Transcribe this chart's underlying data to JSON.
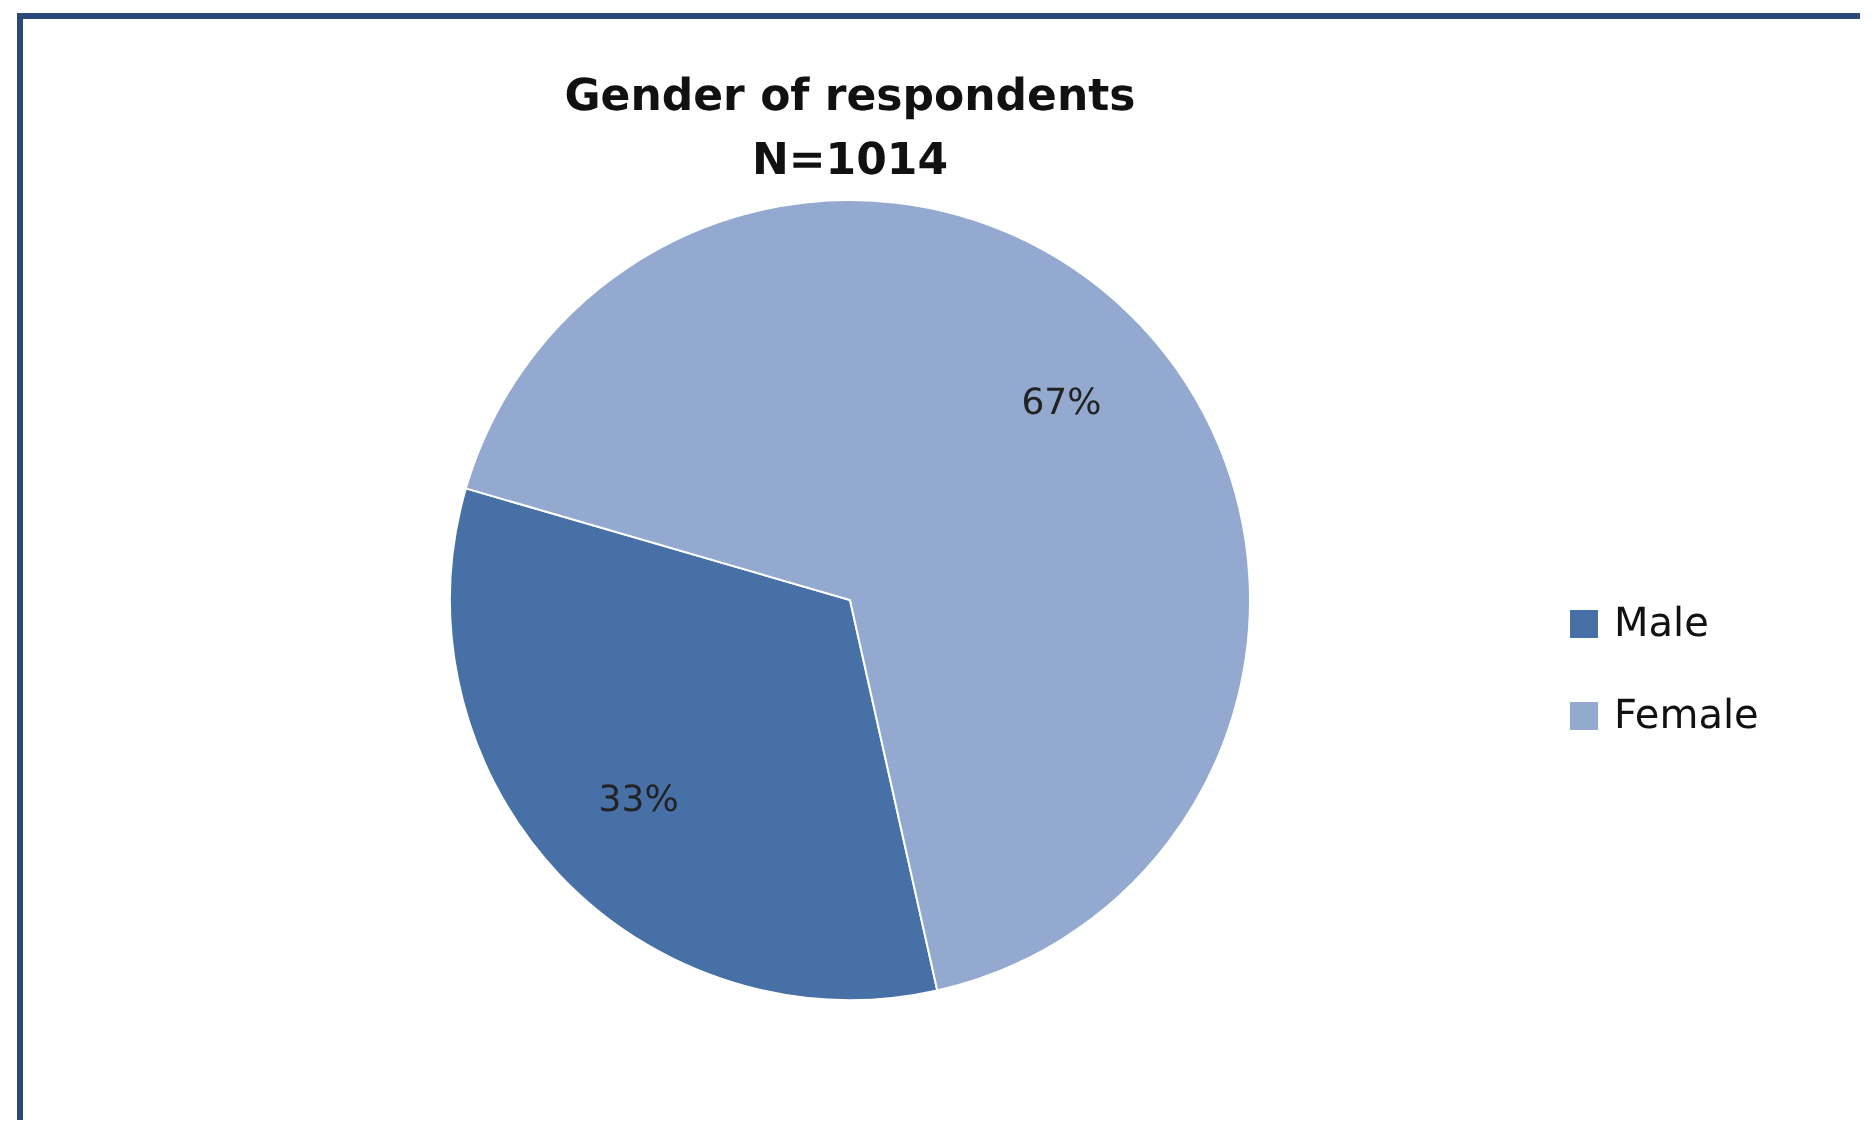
{
  "chart_data": {
    "type": "pie",
    "title": "Gender of respondents\nN=1014",
    "categories": [
      "Male",
      "Female"
    ],
    "values": [
      33,
      67
    ],
    "colors": [
      "#4670a6",
      "#93a9cf"
    ],
    "value_labels": [
      "33%",
      "67%"
    ],
    "legend": "right"
  }
}
